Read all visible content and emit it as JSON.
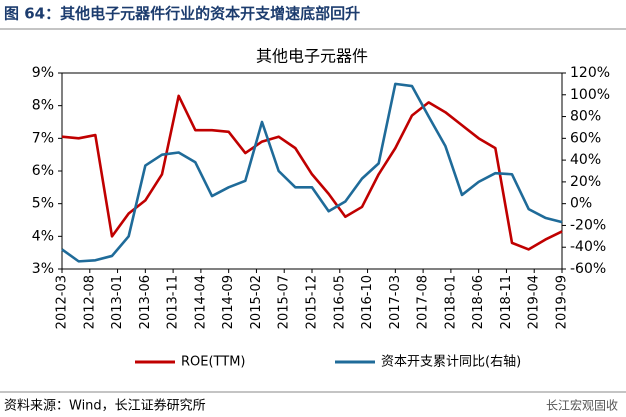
{
  "header": "图 64：其他电子元器件行业的资本开支增速底部回升",
  "source": "资料来源：Wind，长江证券研究所",
  "watermark": "长江宏观固收",
  "chart_data": {
    "type": "line",
    "title": "其他电子元器件",
    "x": [
      "2012-03",
      "2012-06",
      "2012-09",
      "2012-12",
      "2013-03",
      "2013-06",
      "2013-09",
      "2013-12",
      "2014-03",
      "2014-06",
      "2014-09",
      "2014-12",
      "2015-03",
      "2015-06",
      "2015-09",
      "2015-12",
      "2016-03",
      "2016-06",
      "2016-09",
      "2016-12",
      "2017-03",
      "2017-06",
      "2017-09",
      "2017-12",
      "2018-03",
      "2018-06",
      "2018-09",
      "2018-12",
      "2019-03",
      "2019-06",
      "2019-09"
    ],
    "xlim": [
      "2012-03",
      "2019-09"
    ],
    "xticks": [
      "2012-03",
      "2012-08",
      "2013-01",
      "2013-06",
      "2013-11",
      "2014-04",
      "2014-09",
      "2015-02",
      "2015-07",
      "2015-12",
      "2016-05",
      "2016-10",
      "2017-03",
      "2017-08",
      "2018-01",
      "2018-06",
      "2018-11",
      "2019-04",
      "2019-09"
    ],
    "ylim": [
      3,
      9
    ],
    "yticks": [
      {
        "value": 3,
        "label": "3%"
      },
      {
        "value": 4,
        "label": "4%"
      },
      {
        "value": 5,
        "label": "5%"
      },
      {
        "value": 6,
        "label": "6%"
      },
      {
        "value": 7,
        "label": "7%"
      },
      {
        "value": 8,
        "label": "8%"
      },
      {
        "value": 9,
        "label": "9%"
      }
    ],
    "y2lim": [
      -60,
      120
    ],
    "y2ticks": [
      {
        "value": -60,
        "label": "-60%"
      },
      {
        "value": -40,
        "label": "-40%"
      },
      {
        "value": -20,
        "label": "-20%"
      },
      {
        "value": 0,
        "label": "0%"
      },
      {
        "value": 20,
        "label": "20%"
      },
      {
        "value": 40,
        "label": "40%"
      },
      {
        "value": 60,
        "label": "60%"
      },
      {
        "value": 80,
        "label": "80%"
      },
      {
        "value": 100,
        "label": "100%"
      },
      {
        "value": 120,
        "label": "120%"
      }
    ],
    "legend": "bottom",
    "series": [
      {
        "name": "ROE(TTM)",
        "color": "#c00000",
        "values": [
          7.05,
          7.0,
          7.1,
          4.0,
          4.7,
          5.1,
          5.9,
          8.3,
          7.25,
          7.25,
          7.2,
          6.55,
          6.9,
          7.05,
          6.7,
          5.9,
          5.3,
          4.6,
          4.9,
          5.9,
          6.7,
          7.7,
          8.1,
          7.8,
          7.4,
          7.0,
          6.7,
          3.8,
          3.6,
          3.9,
          4.15
        ]
      },
      {
        "name": "资本开支累计同比(右轴)",
        "color": "#1f6b99",
        "axis": "y2",
        "values": [
          -42,
          -53,
          -52,
          -48,
          -30,
          35,
          45,
          47,
          38,
          7,
          15,
          21,
          75,
          30,
          15,
          15,
          -7,
          2,
          23,
          37,
          110,
          108,
          80,
          53,
          8,
          20,
          28,
          27,
          -5,
          -13,
          -17
        ]
      }
    ]
  }
}
